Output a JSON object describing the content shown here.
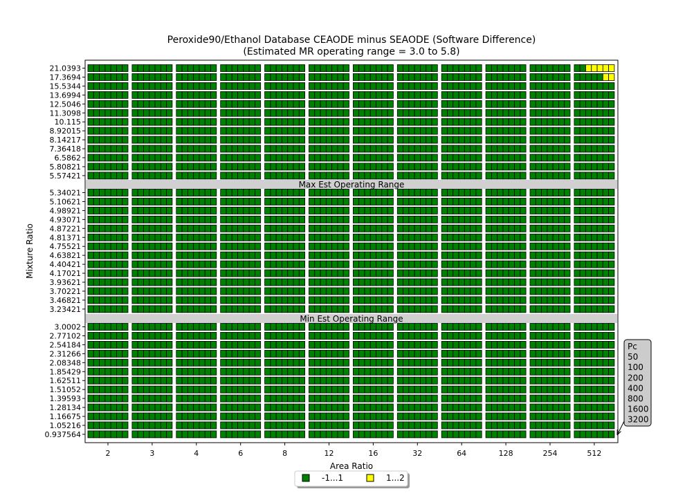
{
  "chart_data": {
    "type": "heatmap",
    "title": "Peroxide90/Ethanol Database CEAODE minus SEAODE (Software Difference)",
    "subtitle": "(Estimated MR operating range = 3.0 to 5.8)",
    "xlabel": "Area Ratio",
    "ylabel": "Mixture Ratio",
    "x_categories": [
      "2",
      "3",
      "4",
      "6",
      "8",
      "12",
      "16",
      "32",
      "64",
      "128",
      "254",
      "512"
    ],
    "y_groups": [
      {
        "name": "top",
        "rows": [
          "21.0393",
          "17.3694",
          "15.5344",
          "13.6994",
          "12.5046",
          "11.3098",
          "10.115",
          "8.92015",
          "8.14217",
          "7.36418",
          "6.5862",
          "5.80821",
          "5.57421"
        ]
      },
      {
        "name": "middle",
        "rows": [
          "5.34021",
          "5.10621",
          "4.98921",
          "4.93071",
          "4.87221",
          "4.81371",
          "4.75521",
          "4.63821",
          "4.40421",
          "4.17021",
          "3.93621",
          "3.70221",
          "3.46821",
          "3.23421"
        ]
      },
      {
        "name": "bottom",
        "rows": [
          "3.0002",
          "2.77102",
          "2.54184",
          "2.31266",
          "2.08348",
          "1.85429",
          "1.62511",
          "1.51052",
          "1.39593",
          "1.28134",
          "1.16675",
          "1.05216",
          "0.937564"
        ]
      }
    ],
    "separators": [
      "Max Est Operating Range",
      "Min Est Operating Range"
    ],
    "sub_cell_series": {
      "name": "Pc",
      "values": [
        "50",
        "100",
        "200",
        "400",
        "800",
        "1600",
        "3200"
      ]
    },
    "legend": {
      "placement": "bottom-center",
      "items": [
        {
          "label": "-1...1",
          "color": "#008000"
        },
        {
          "label": "1...2",
          "color": "#ffff00"
        }
      ]
    },
    "default_bin": 0,
    "exceptions": [
      {
        "row": "21.0393",
        "x": "512",
        "pc": [
          "200",
          "400",
          "800",
          "1600",
          "3200"
        ],
        "bin": 1
      },
      {
        "row": "17.3694",
        "x": "512",
        "pc": [
          "1600",
          "3200"
        ],
        "bin": 1
      }
    ]
  }
}
